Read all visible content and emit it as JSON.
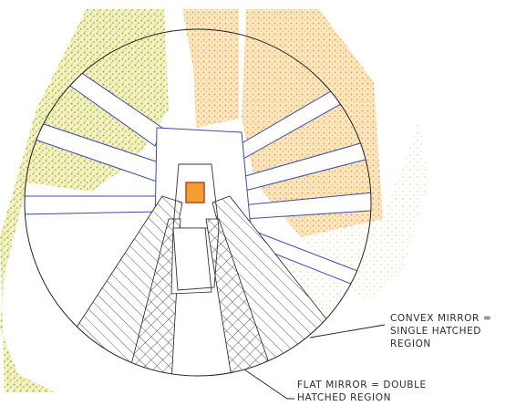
{
  "annotations": [
    {
      "lines": [
        "CONVEX MIRROR =",
        "SINGLE HATCHED",
        "REGION"
      ]
    },
    {
      "lines": [
        "FLAT MIRROR = DOUBLE",
        "HATCHED REGION"
      ]
    }
  ]
}
